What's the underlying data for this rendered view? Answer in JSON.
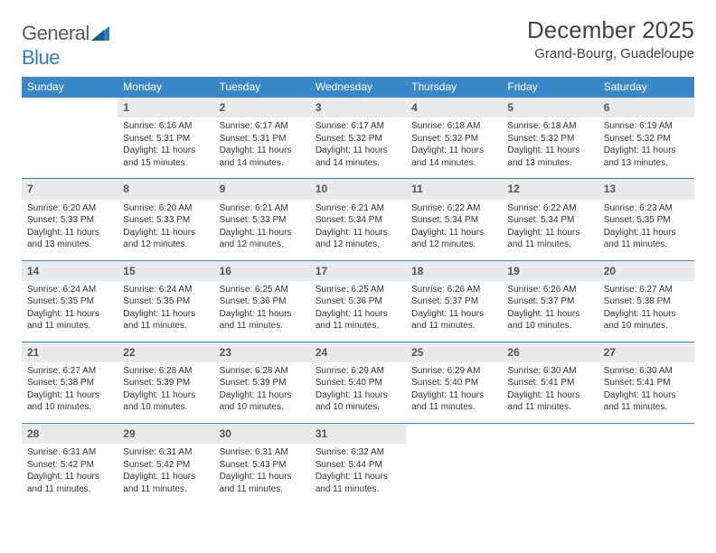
{
  "brand": {
    "name_part1": "General",
    "name_part2": "Blue"
  },
  "title": "December 2025",
  "location": "Grand-Bourg, Guadeloupe",
  "colors": {
    "header_bg": "#3a87c7",
    "header_text": "#ffffff",
    "daynum_bg": "#e9eaec",
    "row_divider": "#3a87c7",
    "text": "#333333",
    "brand_gray": "#5a5a5a",
    "brand_blue": "#2f7ec2"
  },
  "day_headers": [
    "Sunday",
    "Monday",
    "Tuesday",
    "Wednesday",
    "Thursday",
    "Friday",
    "Saturday"
  ],
  "weeks": [
    [
      null,
      {
        "n": "1",
        "sr": "Sunrise: 6:16 AM",
        "ss": "Sunset: 5:31 PM",
        "dl1": "Daylight: 11 hours",
        "dl2": "and 15 minutes."
      },
      {
        "n": "2",
        "sr": "Sunrise: 6:17 AM",
        "ss": "Sunset: 5:31 PM",
        "dl1": "Daylight: 11 hours",
        "dl2": "and 14 minutes."
      },
      {
        "n": "3",
        "sr": "Sunrise: 6:17 AM",
        "ss": "Sunset: 5:32 PM",
        "dl1": "Daylight: 11 hours",
        "dl2": "and 14 minutes."
      },
      {
        "n": "4",
        "sr": "Sunrise: 6:18 AM",
        "ss": "Sunset: 5:32 PM",
        "dl1": "Daylight: 11 hours",
        "dl2": "and 14 minutes."
      },
      {
        "n": "5",
        "sr": "Sunrise: 6:18 AM",
        "ss": "Sunset: 5:32 PM",
        "dl1": "Daylight: 11 hours",
        "dl2": "and 13 minutes."
      },
      {
        "n": "6",
        "sr": "Sunrise: 6:19 AM",
        "ss": "Sunset: 5:32 PM",
        "dl1": "Daylight: 11 hours",
        "dl2": "and 13 minutes."
      }
    ],
    [
      {
        "n": "7",
        "sr": "Sunrise: 6:20 AM",
        "ss": "Sunset: 5:33 PM",
        "dl1": "Daylight: 11 hours",
        "dl2": "and 13 minutes."
      },
      {
        "n": "8",
        "sr": "Sunrise: 6:20 AM",
        "ss": "Sunset: 5:33 PM",
        "dl1": "Daylight: 11 hours",
        "dl2": "and 12 minutes."
      },
      {
        "n": "9",
        "sr": "Sunrise: 6:21 AM",
        "ss": "Sunset: 5:33 PM",
        "dl1": "Daylight: 11 hours",
        "dl2": "and 12 minutes."
      },
      {
        "n": "10",
        "sr": "Sunrise: 6:21 AM",
        "ss": "Sunset: 5:34 PM",
        "dl1": "Daylight: 11 hours",
        "dl2": "and 12 minutes."
      },
      {
        "n": "11",
        "sr": "Sunrise: 6:22 AM",
        "ss": "Sunset: 5:34 PM",
        "dl1": "Daylight: 11 hours",
        "dl2": "and 12 minutes."
      },
      {
        "n": "12",
        "sr": "Sunrise: 6:22 AM",
        "ss": "Sunset: 5:34 PM",
        "dl1": "Daylight: 11 hours",
        "dl2": "and 11 minutes."
      },
      {
        "n": "13",
        "sr": "Sunrise: 6:23 AM",
        "ss": "Sunset: 5:35 PM",
        "dl1": "Daylight: 11 hours",
        "dl2": "and 11 minutes."
      }
    ],
    [
      {
        "n": "14",
        "sr": "Sunrise: 6:24 AM",
        "ss": "Sunset: 5:35 PM",
        "dl1": "Daylight: 11 hours",
        "dl2": "and 11 minutes."
      },
      {
        "n": "15",
        "sr": "Sunrise: 6:24 AM",
        "ss": "Sunset: 5:35 PM",
        "dl1": "Daylight: 11 hours",
        "dl2": "and 11 minutes."
      },
      {
        "n": "16",
        "sr": "Sunrise: 6:25 AM",
        "ss": "Sunset: 5:36 PM",
        "dl1": "Daylight: 11 hours",
        "dl2": "and 11 minutes."
      },
      {
        "n": "17",
        "sr": "Sunrise: 6:25 AM",
        "ss": "Sunset: 5:36 PM",
        "dl1": "Daylight: 11 hours",
        "dl2": "and 11 minutes."
      },
      {
        "n": "18",
        "sr": "Sunrise: 6:26 AM",
        "ss": "Sunset: 5:37 PM",
        "dl1": "Daylight: 11 hours",
        "dl2": "and 11 minutes."
      },
      {
        "n": "19",
        "sr": "Sunrise: 6:26 AM",
        "ss": "Sunset: 5:37 PM",
        "dl1": "Daylight: 11 hours",
        "dl2": "and 10 minutes."
      },
      {
        "n": "20",
        "sr": "Sunrise: 6:27 AM",
        "ss": "Sunset: 5:38 PM",
        "dl1": "Daylight: 11 hours",
        "dl2": "and 10 minutes."
      }
    ],
    [
      {
        "n": "21",
        "sr": "Sunrise: 6:27 AM",
        "ss": "Sunset: 5:38 PM",
        "dl1": "Daylight: 11 hours",
        "dl2": "and 10 minutes."
      },
      {
        "n": "22",
        "sr": "Sunrise: 6:28 AM",
        "ss": "Sunset: 5:39 PM",
        "dl1": "Daylight: 11 hours",
        "dl2": "and 10 minutes."
      },
      {
        "n": "23",
        "sr": "Sunrise: 6:28 AM",
        "ss": "Sunset: 5:39 PM",
        "dl1": "Daylight: 11 hours",
        "dl2": "and 10 minutes."
      },
      {
        "n": "24",
        "sr": "Sunrise: 6:29 AM",
        "ss": "Sunset: 5:40 PM",
        "dl1": "Daylight: 11 hours",
        "dl2": "and 10 minutes."
      },
      {
        "n": "25",
        "sr": "Sunrise: 6:29 AM",
        "ss": "Sunset: 5:40 PM",
        "dl1": "Daylight: 11 hours",
        "dl2": "and 11 minutes."
      },
      {
        "n": "26",
        "sr": "Sunrise: 6:30 AM",
        "ss": "Sunset: 5:41 PM",
        "dl1": "Daylight: 11 hours",
        "dl2": "and 11 minutes."
      },
      {
        "n": "27",
        "sr": "Sunrise: 6:30 AM",
        "ss": "Sunset: 5:41 PM",
        "dl1": "Daylight: 11 hours",
        "dl2": "and 11 minutes."
      }
    ],
    [
      {
        "n": "28",
        "sr": "Sunrise: 6:31 AM",
        "ss": "Sunset: 5:42 PM",
        "dl1": "Daylight: 11 hours",
        "dl2": "and 11 minutes."
      },
      {
        "n": "29",
        "sr": "Sunrise: 6:31 AM",
        "ss": "Sunset: 5:42 PM",
        "dl1": "Daylight: 11 hours",
        "dl2": "and 11 minutes."
      },
      {
        "n": "30",
        "sr": "Sunrise: 6:31 AM",
        "ss": "Sunset: 5:43 PM",
        "dl1": "Daylight: 11 hours",
        "dl2": "and 11 minutes."
      },
      {
        "n": "31",
        "sr": "Sunrise: 6:32 AM",
        "ss": "Sunset: 5:44 PM",
        "dl1": "Daylight: 11 hours",
        "dl2": "and 11 minutes."
      },
      null,
      null,
      null
    ]
  ]
}
